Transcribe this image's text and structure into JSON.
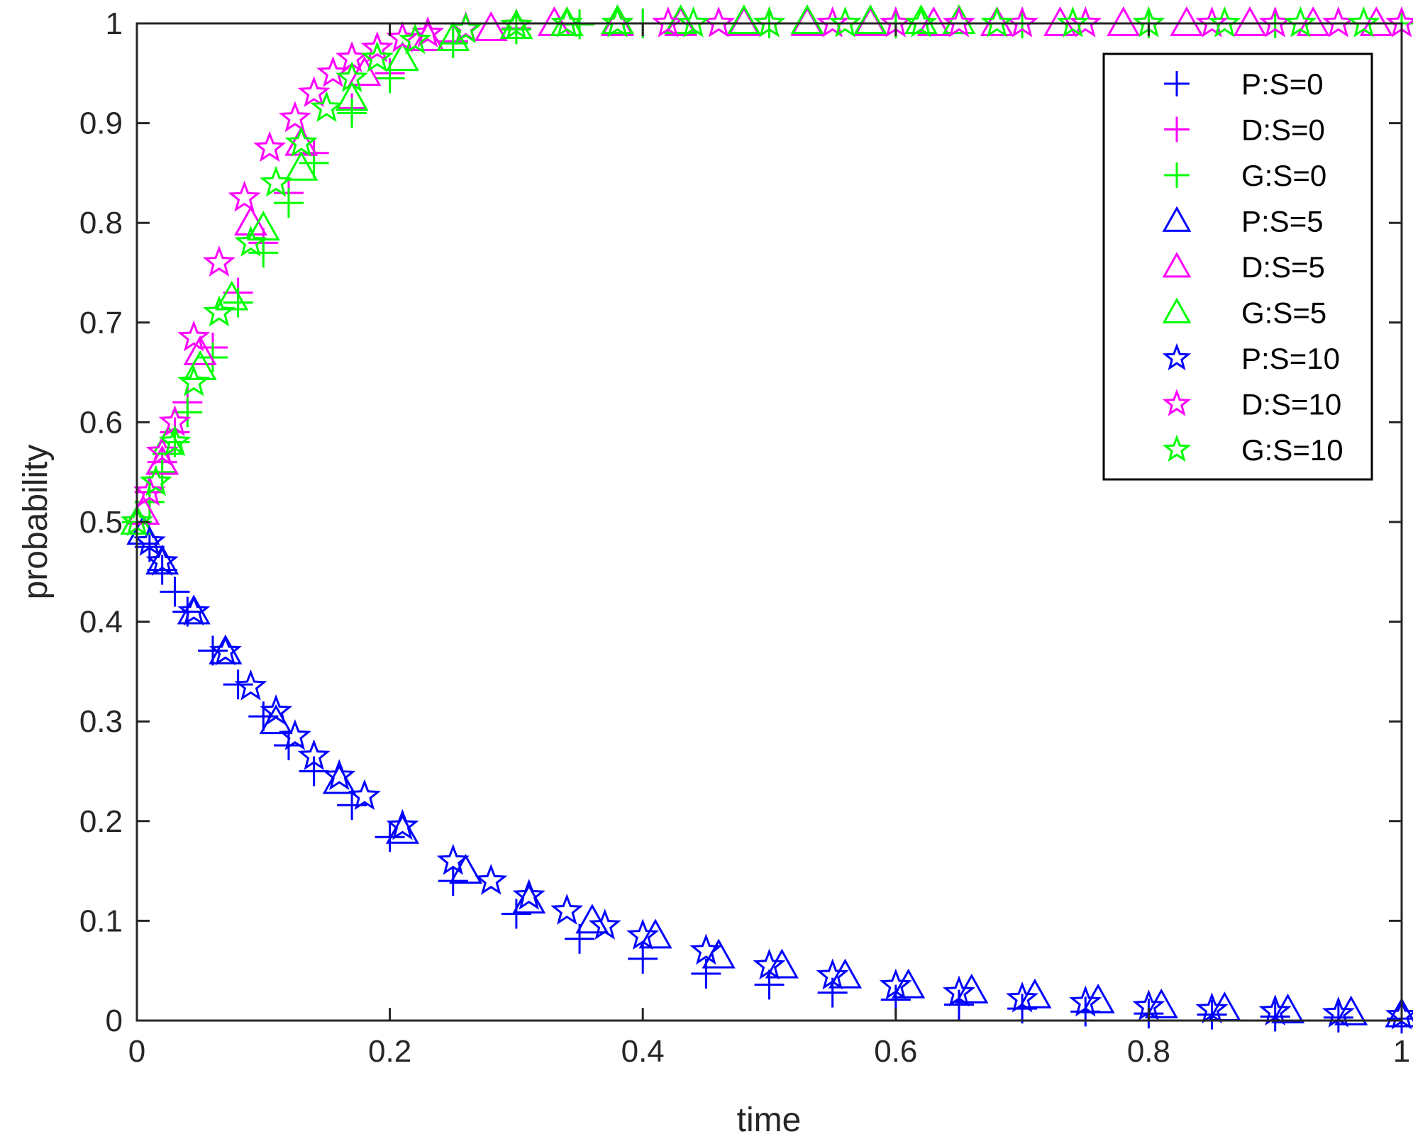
{
  "chart_data": {
    "type": "scatter",
    "title": "",
    "xlabel": "time",
    "ylabel": "probability",
    "xlim": [
      0,
      1
    ],
    "ylim": [
      0,
      1
    ],
    "x_ticks": [
      "0",
      "0.2",
      "0.4",
      "0.6",
      "0.8",
      "1"
    ],
    "y_ticks": [
      "0",
      "0.1",
      "0.2",
      "0.3",
      "0.4",
      "0.5",
      "0.6",
      "0.7",
      "0.8",
      "0.9",
      "1"
    ],
    "grid": false,
    "legend_position": "top-right",
    "colors": {
      "P": "#0000ff",
      "D": "#ff00ff",
      "G": "#00ff00"
    },
    "legend": [
      "P:S=0",
      "D:S=0",
      "G:S=0",
      "P:S=5",
      "D:S=5",
      "G:S=5",
      "P:S=10",
      "D:S=10",
      "G:S=10"
    ],
    "series": [
      {
        "name": "P:S=0",
        "color": "#0000ff",
        "marker": "plus",
        "x": [
          0,
          0.01,
          0.02,
          0.03,
          0.04,
          0.06,
          0.08,
          0.1,
          0.12,
          0.14,
          0.17,
          0.2,
          0.25,
          0.3,
          0.35,
          0.4,
          0.45,
          0.5,
          0.55,
          0.6,
          0.65,
          0.7,
          0.75,
          0.8,
          0.85,
          0.9,
          0.95,
          1
        ],
        "y": [
          0.5,
          0.475,
          0.452,
          0.43,
          0.41,
          0.371,
          0.337,
          0.305,
          0.276,
          0.25,
          0.216,
          0.184,
          0.14,
          0.107,
          0.082,
          0.062,
          0.047,
          0.036,
          0.028,
          0.021,
          0.016,
          0.012,
          0.009,
          0.007,
          0.006,
          0.004,
          0.003,
          0.002
        ]
      },
      {
        "name": "D:S=0",
        "color": "#ff00ff",
        "marker": "plus",
        "x": [
          0,
          0.01,
          0.02,
          0.03,
          0.04,
          0.06,
          0.08,
          0.1,
          0.12,
          0.14,
          0.17,
          0.2,
          0.25,
          0.3,
          0.35,
          0.4,
          0.5,
          0.6,
          0.7,
          0.8,
          0.9,
          1
        ],
        "y": [
          0.5,
          0.53,
          0.56,
          0.59,
          0.62,
          0.675,
          0.73,
          0.78,
          0.83,
          0.87,
          0.915,
          0.95,
          0.982,
          0.995,
          0.999,
          1,
          1,
          1,
          1,
          1,
          1,
          1
        ]
      },
      {
        "name": "G:S=0",
        "color": "#00ff00",
        "marker": "plus",
        "x": [
          0,
          0.01,
          0.02,
          0.03,
          0.04,
          0.06,
          0.08,
          0.1,
          0.12,
          0.14,
          0.17,
          0.2,
          0.25,
          0.3,
          0.35,
          0.4,
          0.5,
          0.6,
          0.7,
          0.8,
          0.9,
          1
        ],
        "y": [
          0.5,
          0.52,
          0.55,
          0.58,
          0.61,
          0.665,
          0.72,
          0.77,
          0.82,
          0.86,
          0.91,
          0.945,
          0.98,
          0.994,
          0.999,
          1,
          1,
          1,
          1,
          1,
          1,
          1
        ]
      },
      {
        "name": "P:S=5",
        "color": "#0000ff",
        "marker": "triangle",
        "x": [
          0.005,
          0.02,
          0.045,
          0.07,
          0.11,
          0.16,
          0.21,
          0.26,
          0.31,
          0.36,
          0.41,
          0.46,
          0.51,
          0.56,
          0.61,
          0.66,
          0.71,
          0.76,
          0.81,
          0.86,
          0.91,
          0.96,
          1
        ],
        "y": [
          0.49,
          0.46,
          0.41,
          0.37,
          0.3,
          0.24,
          0.19,
          0.15,
          0.12,
          0.1,
          0.085,
          0.065,
          0.055,
          0.045,
          0.035,
          0.03,
          0.025,
          0.02,
          0.015,
          0.012,
          0.01,
          0.008,
          0.006
        ]
      },
      {
        "name": "D:S=5",
        "color": "#ff00ff",
        "marker": "triangle",
        "x": [
          0.005,
          0.02,
          0.05,
          0.09,
          0.13,
          0.18,
          0.23,
          0.28,
          0.33,
          0.38,
          0.43,
          0.48,
          0.53,
          0.58,
          0.63,
          0.68,
          0.73,
          0.78,
          0.83,
          0.88,
          0.93,
          0.98
        ],
        "y": [
          0.51,
          0.56,
          0.67,
          0.8,
          0.88,
          0.95,
          0.985,
          0.995,
          1,
          1,
          1,
          1,
          1,
          1,
          1,
          1,
          1,
          1,
          1,
          1,
          1,
          1
        ]
      },
      {
        "name": "G:S=5",
        "color": "#00ff00",
        "marker": "triangle",
        "x": [
          0,
          0.025,
          0.05,
          0.075,
          0.1,
          0.13,
          0.17,
          0.21,
          0.25,
          0.3,
          0.34,
          0.38,
          0.43,
          0.48,
          0.53,
          0.58,
          0.62,
          0.65
        ],
        "y": [
          0.5,
          0.58,
          0.655,
          0.725,
          0.795,
          0.855,
          0.925,
          0.965,
          0.985,
          0.997,
          1,
          1.002,
          1.002,
          1.002,
          1.002,
          1.002,
          1.002,
          1.002
        ]
      },
      {
        "name": "P:S=10",
        "color": "#0000ff",
        "marker": "star",
        "x": [
          0.01,
          0.02,
          0.045,
          0.07,
          0.09,
          0.11,
          0.125,
          0.14,
          0.16,
          0.18,
          0.21,
          0.25,
          0.28,
          0.31,
          0.34,
          0.37,
          0.4,
          0.45,
          0.5,
          0.55,
          0.6,
          0.65,
          0.7,
          0.75,
          0.8,
          0.85,
          0.9,
          0.95,
          1
        ],
        "y": [
          0.48,
          0.46,
          0.41,
          0.37,
          0.335,
          0.31,
          0.285,
          0.265,
          0.245,
          0.225,
          0.195,
          0.16,
          0.14,
          0.125,
          0.11,
          0.095,
          0.085,
          0.07,
          0.055,
          0.045,
          0.035,
          0.028,
          0.022,
          0.018,
          0.014,
          0.011,
          0.009,
          0.007,
          0.005
        ]
      },
      {
        "name": "D:S=10",
        "color": "#ff00ff",
        "marker": "star",
        "x": [
          0,
          0.01,
          0.02,
          0.03,
          0.045,
          0.065,
          0.085,
          0.105,
          0.125,
          0.14,
          0.155,
          0.17,
          0.19,
          0.21,
          0.23,
          0.26,
          0.3,
          0.34,
          0.38,
          0.42,
          0.46,
          0.5,
          0.55,
          0.6,
          0.65,
          0.7,
          0.75,
          0.8,
          0.85,
          0.9,
          0.95,
          1
        ],
        "y": [
          0.5,
          0.53,
          0.57,
          0.6,
          0.685,
          0.76,
          0.825,
          0.875,
          0.905,
          0.93,
          0.95,
          0.965,
          0.975,
          0.985,
          0.99,
          0.995,
          0.998,
          1,
          1,
          1,
          1,
          1,
          1,
          1,
          1,
          1,
          1,
          1,
          1,
          1,
          1,
          1
        ]
      },
      {
        "name": "G:S=10",
        "color": "#00ff00",
        "marker": "star",
        "x": [
          0,
          0.015,
          0.03,
          0.045,
          0.065,
          0.09,
          0.11,
          0.13,
          0.15,
          0.17,
          0.19,
          0.22,
          0.26,
          0.3,
          0.34,
          0.38,
          0.44,
          0.5,
          0.56,
          0.62,
          0.68,
          0.74,
          0.8,
          0.86,
          0.92,
          0.97
        ],
        "y": [
          0.5,
          0.54,
          0.58,
          0.64,
          0.71,
          0.78,
          0.84,
          0.88,
          0.915,
          0.945,
          0.965,
          0.983,
          0.994,
          0.998,
          1,
          1,
          1,
          1,
          1,
          1,
          1,
          1,
          1,
          1,
          1,
          1
        ]
      }
    ]
  }
}
